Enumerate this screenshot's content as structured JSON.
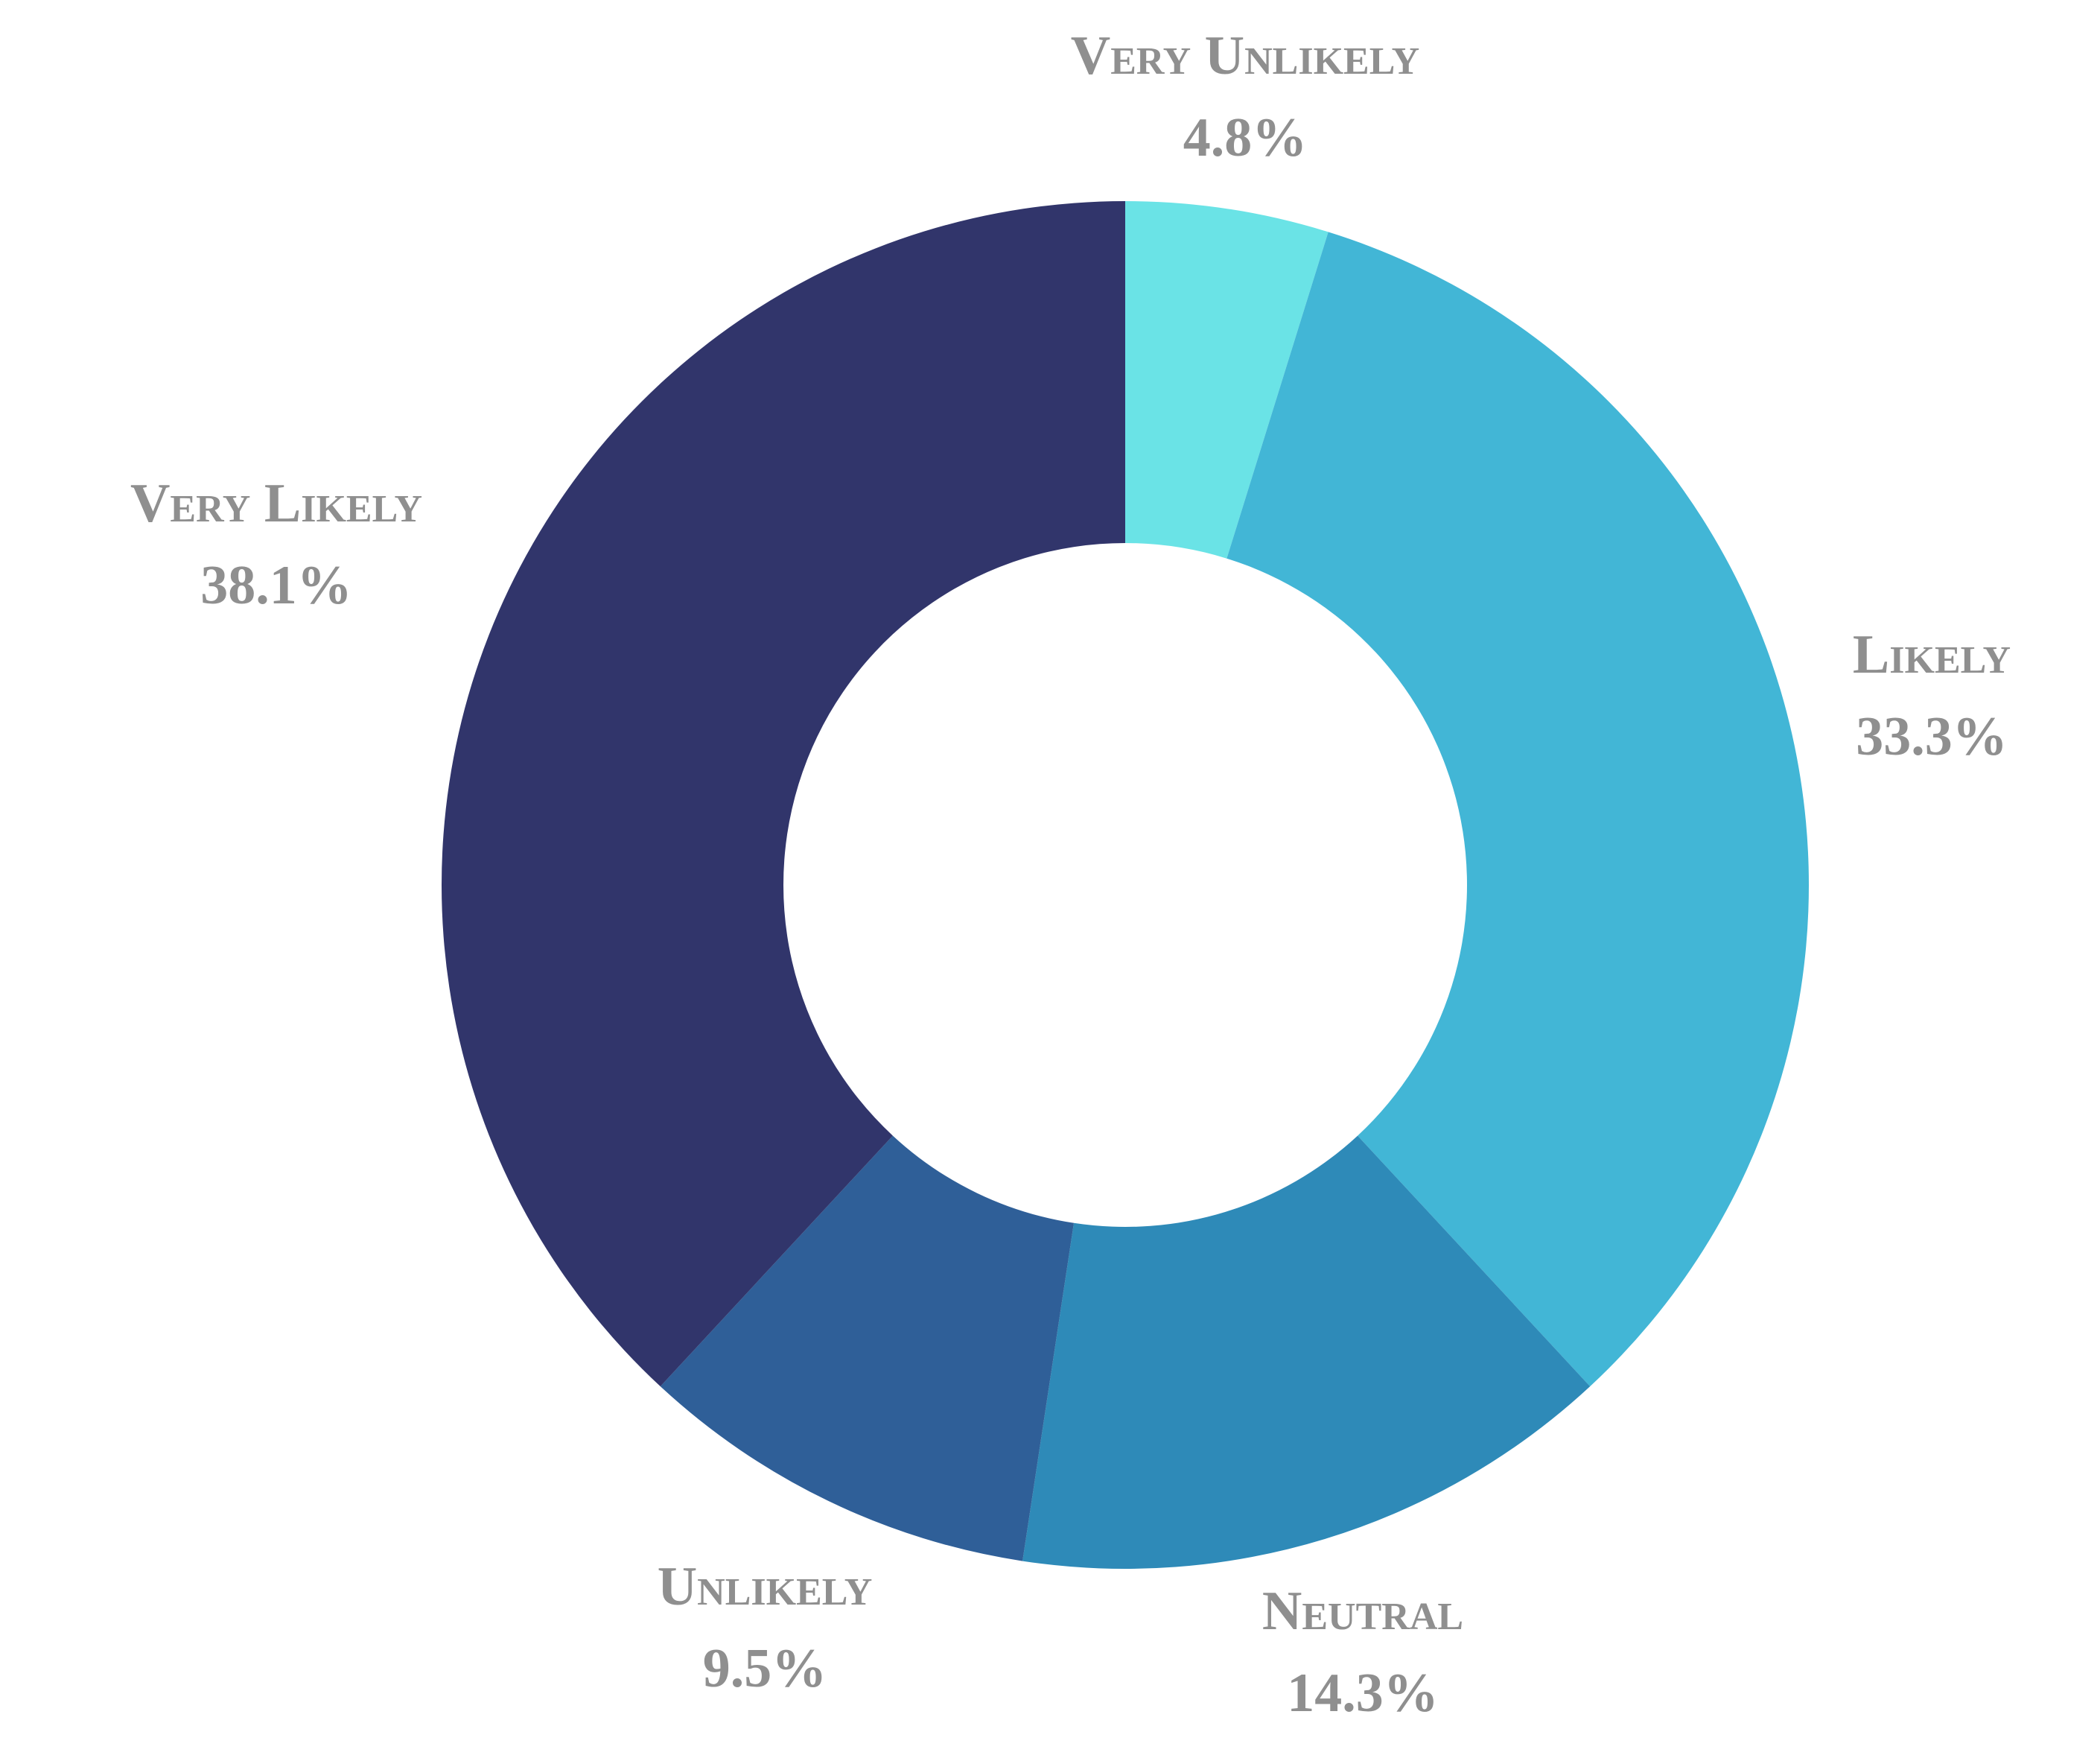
{
  "chart_data": {
    "type": "donut",
    "categories": [
      "Very Unlikely",
      "Likely",
      "Neutral",
      "Unlikely",
      "Very Likely"
    ],
    "values": [
      4.8,
      33.3,
      14.3,
      9.5,
      38.1
    ],
    "value_labels": [
      "4.8%",
      "33.3%",
      "14.3%",
      "9.5%",
      "38.1%"
    ],
    "colors": [
      "#6ae3e6",
      "#42b6d6",
      "#2e8ab8",
      "#2f5f98",
      "#31356b"
    ]
  }
}
